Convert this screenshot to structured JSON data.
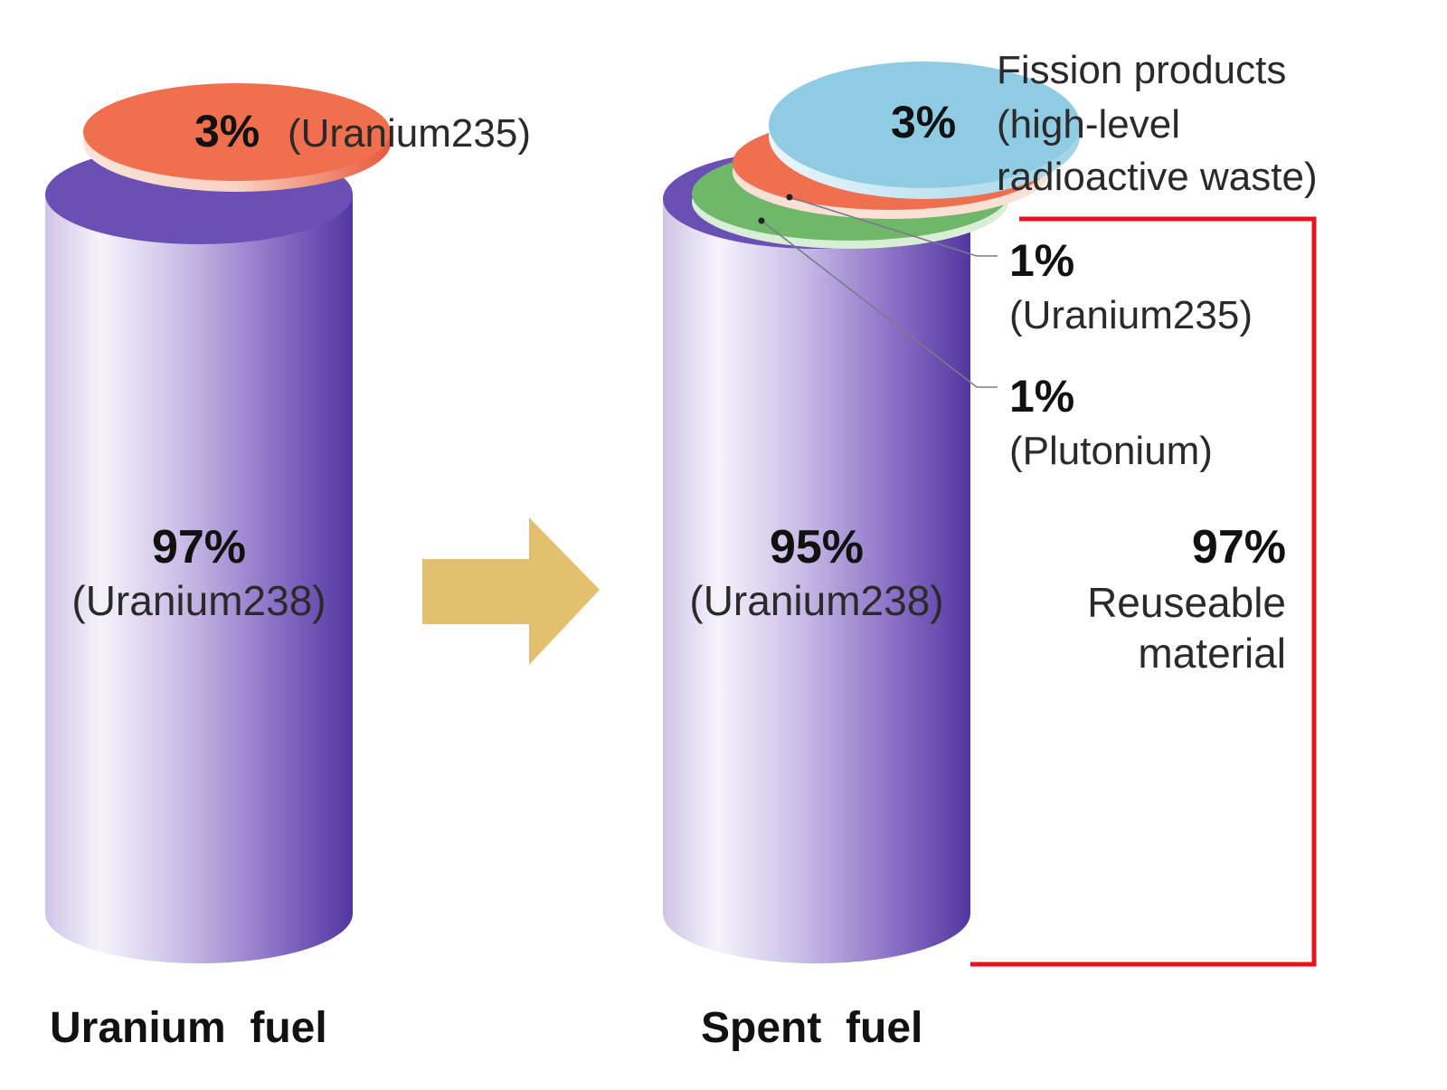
{
  "colors": {
    "cylinder_light": "#f4f0fb",
    "cylinder_mid": "#b8a6da",
    "cylinder_dark": "#5b3fa6",
    "cylinder_top": "#6a4fb5",
    "uranium235_disk": "#ef6f4e",
    "plutonium_disk": "#6fb86a",
    "fission_disk": "#8fcbe3",
    "arrow": "#e3c06e",
    "bracket": "#e8141c"
  },
  "uranium_fuel": {
    "caption": "Uranium  fuel",
    "top_percent": "3%",
    "top_label": "(Uranium235)",
    "body_percent": "97%",
    "body_label": "(Uranium238)"
  },
  "spent_fuel": {
    "caption": "Spent  fuel",
    "body_percent": "95%",
    "body_label": "(Uranium238)",
    "fission": {
      "percent": "3%",
      "label_line1": "Fission products",
      "label_line2": "(high-level",
      "label_line3": "radioactive waste)"
    },
    "uranium235": {
      "percent": "1%",
      "label": "(Uranium235)"
    },
    "plutonium": {
      "percent": "1%",
      "label": "(Plutonium)"
    }
  },
  "reusable": {
    "percent": "97%",
    "line1": "Reuseable",
    "line2": "material"
  }
}
